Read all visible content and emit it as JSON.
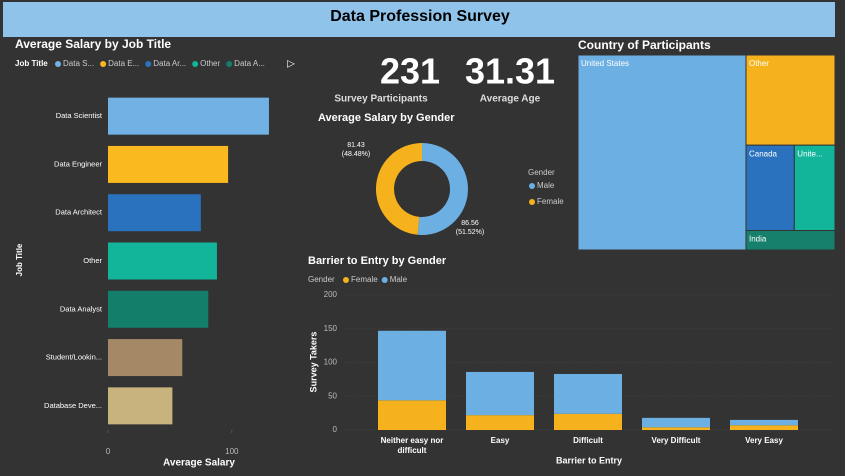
{
  "header": {
    "title": "Data Profession Survey"
  },
  "kpis": [
    {
      "value": 231,
      "label": "Survey Participants"
    },
    {
      "value": 31.31,
      "label": "Average Age"
    }
  ],
  "chart_data": [
    {
      "type": "hbar",
      "title": "Average Salary by Job Title",
      "legend_title": "Job Title",
      "legend_labels": [
        "Data S...",
        "Data E...",
        "Data Ar...",
        "Other",
        "Data A..."
      ],
      "categories": [
        "Data Scientist",
        "Data Engineer",
        "Data Architect",
        "Other",
        "Data Analyst",
        "Student/Lookin...",
        "Database Deve..."
      ],
      "values": [
        130,
        97,
        75,
        88,
        81,
        60,
        52
      ],
      "colors": [
        "#71b1e3",
        "#f9b91f",
        "#2a72bd",
        "#13b59a",
        "#137f6b",
        "#a58866",
        "#c8b37e"
      ],
      "xlim": [
        0,
        147
      ],
      "xticks": [
        0,
        100
      ],
      "x_label": "Average Salary",
      "y_label": "Job Title"
    },
    {
      "type": "donut",
      "title": "Average Salary by Gender",
      "legend_title": "Gender",
      "categories": [
        "Male",
        "Female"
      ],
      "values": [
        86.56,
        81.43
      ],
      "value_labels": [
        "86.56 (51.52%)",
        "81.43 (48.48%)"
      ],
      "colors": [
        "#6cb0e3",
        "#f6b21c"
      ]
    },
    {
      "type": "treemap",
      "title": "Country of Participants",
      "categories": [
        "United States",
        "Other",
        "Canada",
        "Unite...",
        "India"
      ],
      "values": [
        151,
        37,
        19,
        16,
        8
      ],
      "colors": [
        "#6cb0e3",
        "#f6b21c",
        "#2a72bd",
        "#13b59a",
        "#17806c"
      ]
    },
    {
      "type": "stacked_bar",
      "title": "Barrier to Entry by Gender",
      "legend_title": "Gender",
      "categories": [
        "Neither easy nor difficult",
        "Easy",
        "Difficult",
        "Very Difficult",
        "Very Easy"
      ],
      "series": [
        {
          "name": "Female",
          "color": "#f6b21c",
          "values": [
            44,
            22,
            24,
            4,
            7
          ]
        },
        {
          "name": "Male",
          "color": "#6cb0e3",
          "values": [
            103,
            64,
            59,
            14,
            8
          ]
        }
      ],
      "ylim": [
        0,
        200
      ],
      "yticks": [
        0,
        50,
        100,
        150,
        200
      ],
      "grid": true,
      "x_label": "Barrier to Entry",
      "y_label": "Survey Takers"
    }
  ]
}
